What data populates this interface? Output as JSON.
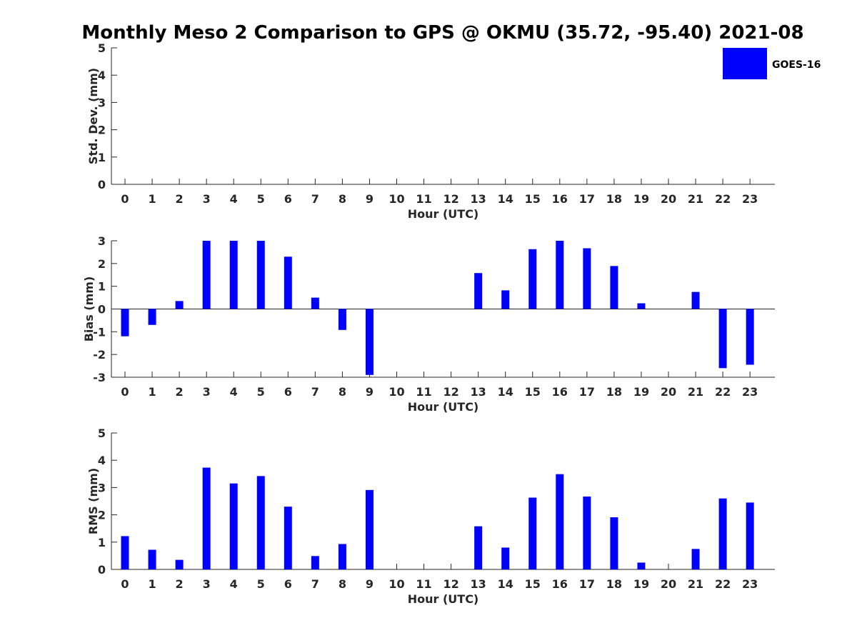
{
  "title": "Monthly Meso 2 Comparison to GPS @ OKMU (35.72, -95.40) 2021-08",
  "legend": {
    "label": "GOES-16",
    "color": "#0000ff",
    "placement": "top-right"
  },
  "chart_data": [
    {
      "type": "bar",
      "name": "std-dev",
      "categories": [
        "0",
        "1",
        "2",
        "3",
        "4",
        "5",
        "6",
        "7",
        "8",
        "9",
        "10",
        "11",
        "12",
        "13",
        "14",
        "15",
        "16",
        "17",
        "18",
        "19",
        "20",
        "21",
        "22",
        "23"
      ],
      "values": [
        0,
        0,
        0,
        0,
        0,
        0,
        0,
        0,
        0,
        0,
        0,
        0,
        0,
        0,
        0,
        0,
        0,
        0,
        0,
        0,
        0,
        0,
        0,
        0
      ],
      "xlabel": "Hour (UTC)",
      "ylabel": "Std. Dev. (mm)",
      "ylim": [
        0,
        5
      ],
      "yticks": [
        0,
        1,
        2,
        3,
        4,
        5
      ],
      "color": "#0000ff"
    },
    {
      "type": "bar",
      "name": "bias",
      "categories": [
        "0",
        "1",
        "2",
        "3",
        "4",
        "5",
        "6",
        "7",
        "8",
        "9",
        "10",
        "11",
        "12",
        "13",
        "14",
        "15",
        "16",
        "17",
        "18",
        "19",
        "20",
        "21",
        "22",
        "23"
      ],
      "values": [
        -1.2,
        -0.7,
        0.35,
        3.0,
        3.0,
        3.0,
        2.3,
        0.5,
        -0.92,
        -2.9,
        0,
        0,
        0,
        1.58,
        0.82,
        2.63,
        3.0,
        2.67,
        1.89,
        0.25,
        0,
        0.75,
        -2.6,
        -2.45
      ],
      "xlabel": "Hour (UTC)",
      "ylabel": "Bias (mm)",
      "ylim": [
        -3,
        3
      ],
      "yticks": [
        -3,
        -2,
        -1,
        0,
        1,
        2,
        3
      ],
      "color": "#0000ff"
    },
    {
      "type": "bar",
      "name": "rms",
      "categories": [
        "0",
        "1",
        "2",
        "3",
        "4",
        "5",
        "6",
        "7",
        "8",
        "9",
        "10",
        "11",
        "12",
        "13",
        "14",
        "15",
        "16",
        "17",
        "18",
        "19",
        "20",
        "21",
        "22",
        "23"
      ],
      "values": [
        1.22,
        0.72,
        0.35,
        3.73,
        3.15,
        3.42,
        2.3,
        0.49,
        0.93,
        2.91,
        0,
        0,
        0,
        1.58,
        0.8,
        2.63,
        3.49,
        2.67,
        1.91,
        0.25,
        0,
        0.75,
        2.6,
        2.45
      ],
      "xlabel": "Hour (UTC)",
      "ylabel": "RMS (mm)",
      "ylim": [
        0,
        5
      ],
      "yticks": [
        0,
        1,
        2,
        3,
        4,
        5
      ],
      "color": "#0000ff"
    }
  ]
}
